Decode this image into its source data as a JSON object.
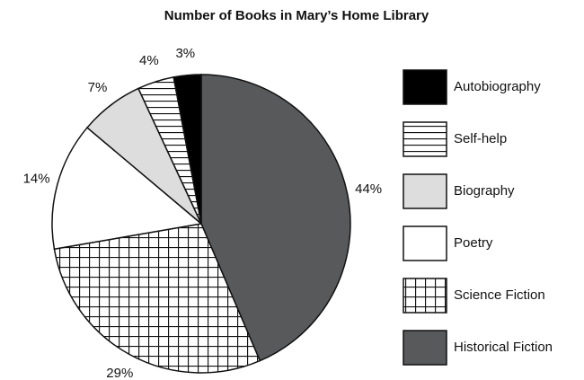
{
  "chart_data": {
    "type": "pie",
    "title": "Number of Books in Mary’s Home Library",
    "categories": [
      "Historical Fiction",
      "Science Fiction",
      "Poetry",
      "Biography",
      "Self-help",
      "Autobiography"
    ],
    "values": [
      44,
      29,
      14,
      7,
      4,
      3
    ],
    "value_labels": [
      "44%",
      "29%",
      "14%",
      "7%",
      "4%",
      "3%"
    ],
    "colors": [
      "#58595b",
      "grid",
      "#ffffff",
      "#dddddd",
      "hlines",
      "#000000"
    ],
    "legend": "right"
  }
}
